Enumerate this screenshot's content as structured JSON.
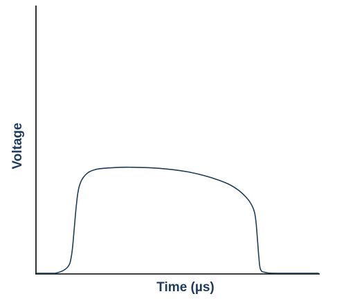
{
  "chart_data": {
    "type": "line",
    "title": "",
    "xlabel": "Time (µs)",
    "ylabel": "Voltage",
    "x_ticks": [],
    "y_ticks": [],
    "grid": false,
    "legend": "none",
    "xlim": [
      0,
      100
    ],
    "ylim": [
      0,
      100
    ],
    "series": [
      {
        "x": [
          0,
          6.5,
          10.9,
          12.4,
          13.3,
          14.1,
          15.1,
          17.2,
          20.7,
          26.4,
          33.1,
          43.5,
          54.6,
          64.6,
          70.6,
          74.7,
          76.9,
          77.8,
          78.4,
          78.9,
          79.5,
          81.3,
          85.3,
          100
        ],
        "y": [
          0,
          0,
          2.2,
          6.9,
          16.2,
          25.5,
          32.4,
          36.6,
          38.7,
          39.4,
          39.6,
          39.2,
          37.7,
          34.8,
          31.8,
          28.0,
          24.2,
          19.8,
          12.5,
          5.9,
          1.4,
          0.3,
          0,
          0
        ]
      }
    ],
    "colors": {
      "line": "#1e3d59",
      "axis": "#000000",
      "label": "#1f3b5e"
    }
  }
}
